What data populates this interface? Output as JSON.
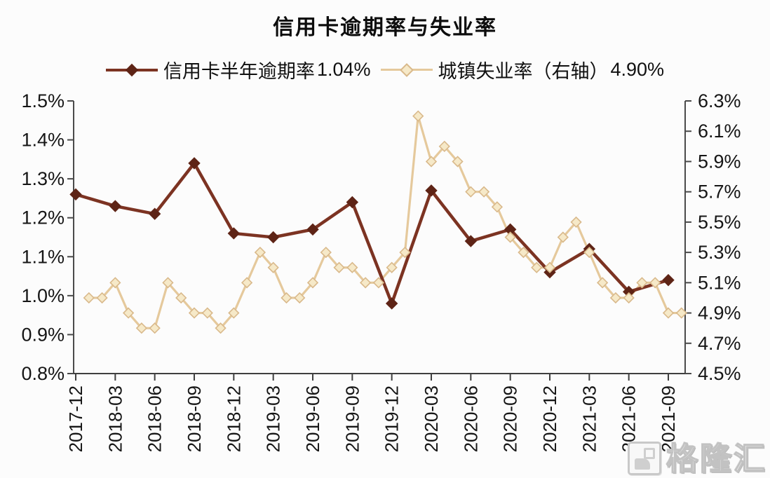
{
  "title": "信用卡逾期率与失业率",
  "legend": [
    {
      "label": "信用卡半年逾期率",
      "value": "1.04%",
      "line_color": "#7c3322",
      "marker_color": "#5e2416"
    },
    {
      "label": "城镇失业率（右轴）",
      "value": "4.90%",
      "line_color": "#e5c99c",
      "marker_fill": "#f6e9c8",
      "marker_stroke": "#d9b98b"
    }
  ],
  "watermark": {
    "text": "格隆汇"
  },
  "chart_data": {
    "type": "line",
    "title": "信用卡逾期率与失业率",
    "grid": false,
    "legend_position": "top",
    "x_month0_label": "2017-12",
    "x_tick_labels": [
      "2017-12",
      "2018-03",
      "2018-06",
      "2018-09",
      "2018-12",
      "2019-03",
      "2019-06",
      "2019-09",
      "2019-12",
      "2020-03",
      "2020-06",
      "2020-09",
      "2020-12",
      "2021-03",
      "2021-06",
      "2021-09"
    ],
    "x_tick_months": [
      0,
      3,
      6,
      9,
      12,
      15,
      18,
      21,
      24,
      27,
      30,
      33,
      36,
      39,
      42,
      45
    ],
    "left_axis": {
      "min": 0.8,
      "max": 1.5,
      "tick_values": [
        1.5,
        1.4,
        1.3,
        1.2,
        1.1,
        1.0,
        0.9,
        0.8
      ],
      "tick_labels": [
        "1.5%",
        "1.4%",
        "1.3%",
        "1.2%",
        "1.1%",
        "1.0%",
        "0.9%",
        "0.8%"
      ]
    },
    "right_axis": {
      "min": 4.5,
      "max": 6.3,
      "tick_values": [
        6.3,
        6.1,
        5.9,
        5.7,
        5.5,
        5.3,
        5.1,
        4.9,
        4.7,
        4.5
      ],
      "tick_labels": [
        "6.3%",
        "6.1%",
        "5.9%",
        "5.7%",
        "5.5%",
        "5.3%",
        "5.1%",
        "4.9%",
        "4.7%",
        "4.5%"
      ]
    },
    "series": [
      {
        "name": "城镇失业率（右轴）",
        "axis": "right",
        "line_color": "#e5c99c",
        "marker": "diamond-open",
        "marker_fill": "#f6e9c8",
        "marker_stroke": "#d9b98b",
        "line_width": 3.2,
        "marker_size": 7,
        "x_months": [
          1,
          2,
          3,
          4,
          5,
          6,
          7,
          8,
          9,
          10,
          11,
          12,
          13,
          14,
          15,
          16,
          17,
          18,
          19,
          20,
          21,
          22,
          23,
          24,
          25,
          26,
          27,
          28,
          29,
          30,
          31,
          32,
          33,
          34,
          35,
          36,
          37,
          38,
          39,
          40,
          41,
          42,
          43,
          44,
          45,
          46
        ],
        "values": [
          5.0,
          5.0,
          5.1,
          4.9,
          4.8,
          4.8,
          5.1,
          5.0,
          4.9,
          4.9,
          4.8,
          4.9,
          5.1,
          5.3,
          5.2,
          5.0,
          5.0,
          5.1,
          5.3,
          5.2,
          5.2,
          5.1,
          5.1,
          5.2,
          5.3,
          6.2,
          5.9,
          6.0,
          5.9,
          5.7,
          5.7,
          5.6,
          5.4,
          5.3,
          5.2,
          5.2,
          5.4,
          5.5,
          5.3,
          5.1,
          5.0,
          5.0,
          5.1,
          5.1,
          4.9,
          4.9
        ]
      },
      {
        "name": "信用卡半年逾期率",
        "axis": "left",
        "line_color": "#7c3322",
        "marker": "diamond-solid",
        "marker_fill": "#5e2416",
        "marker_stroke": "#5e2416",
        "line_width": 4.5,
        "marker_size": 8,
        "x_months": [
          0,
          3,
          6,
          9,
          12,
          15,
          18,
          21,
          24,
          27,
          30,
          33,
          36,
          39,
          42,
          45
        ],
        "values": [
          1.26,
          1.23,
          1.21,
          1.34,
          1.16,
          1.15,
          1.17,
          1.24,
          0.98,
          1.27,
          1.14,
          1.17,
          1.06,
          1.12,
          1.01,
          1.04
        ]
      }
    ]
  }
}
